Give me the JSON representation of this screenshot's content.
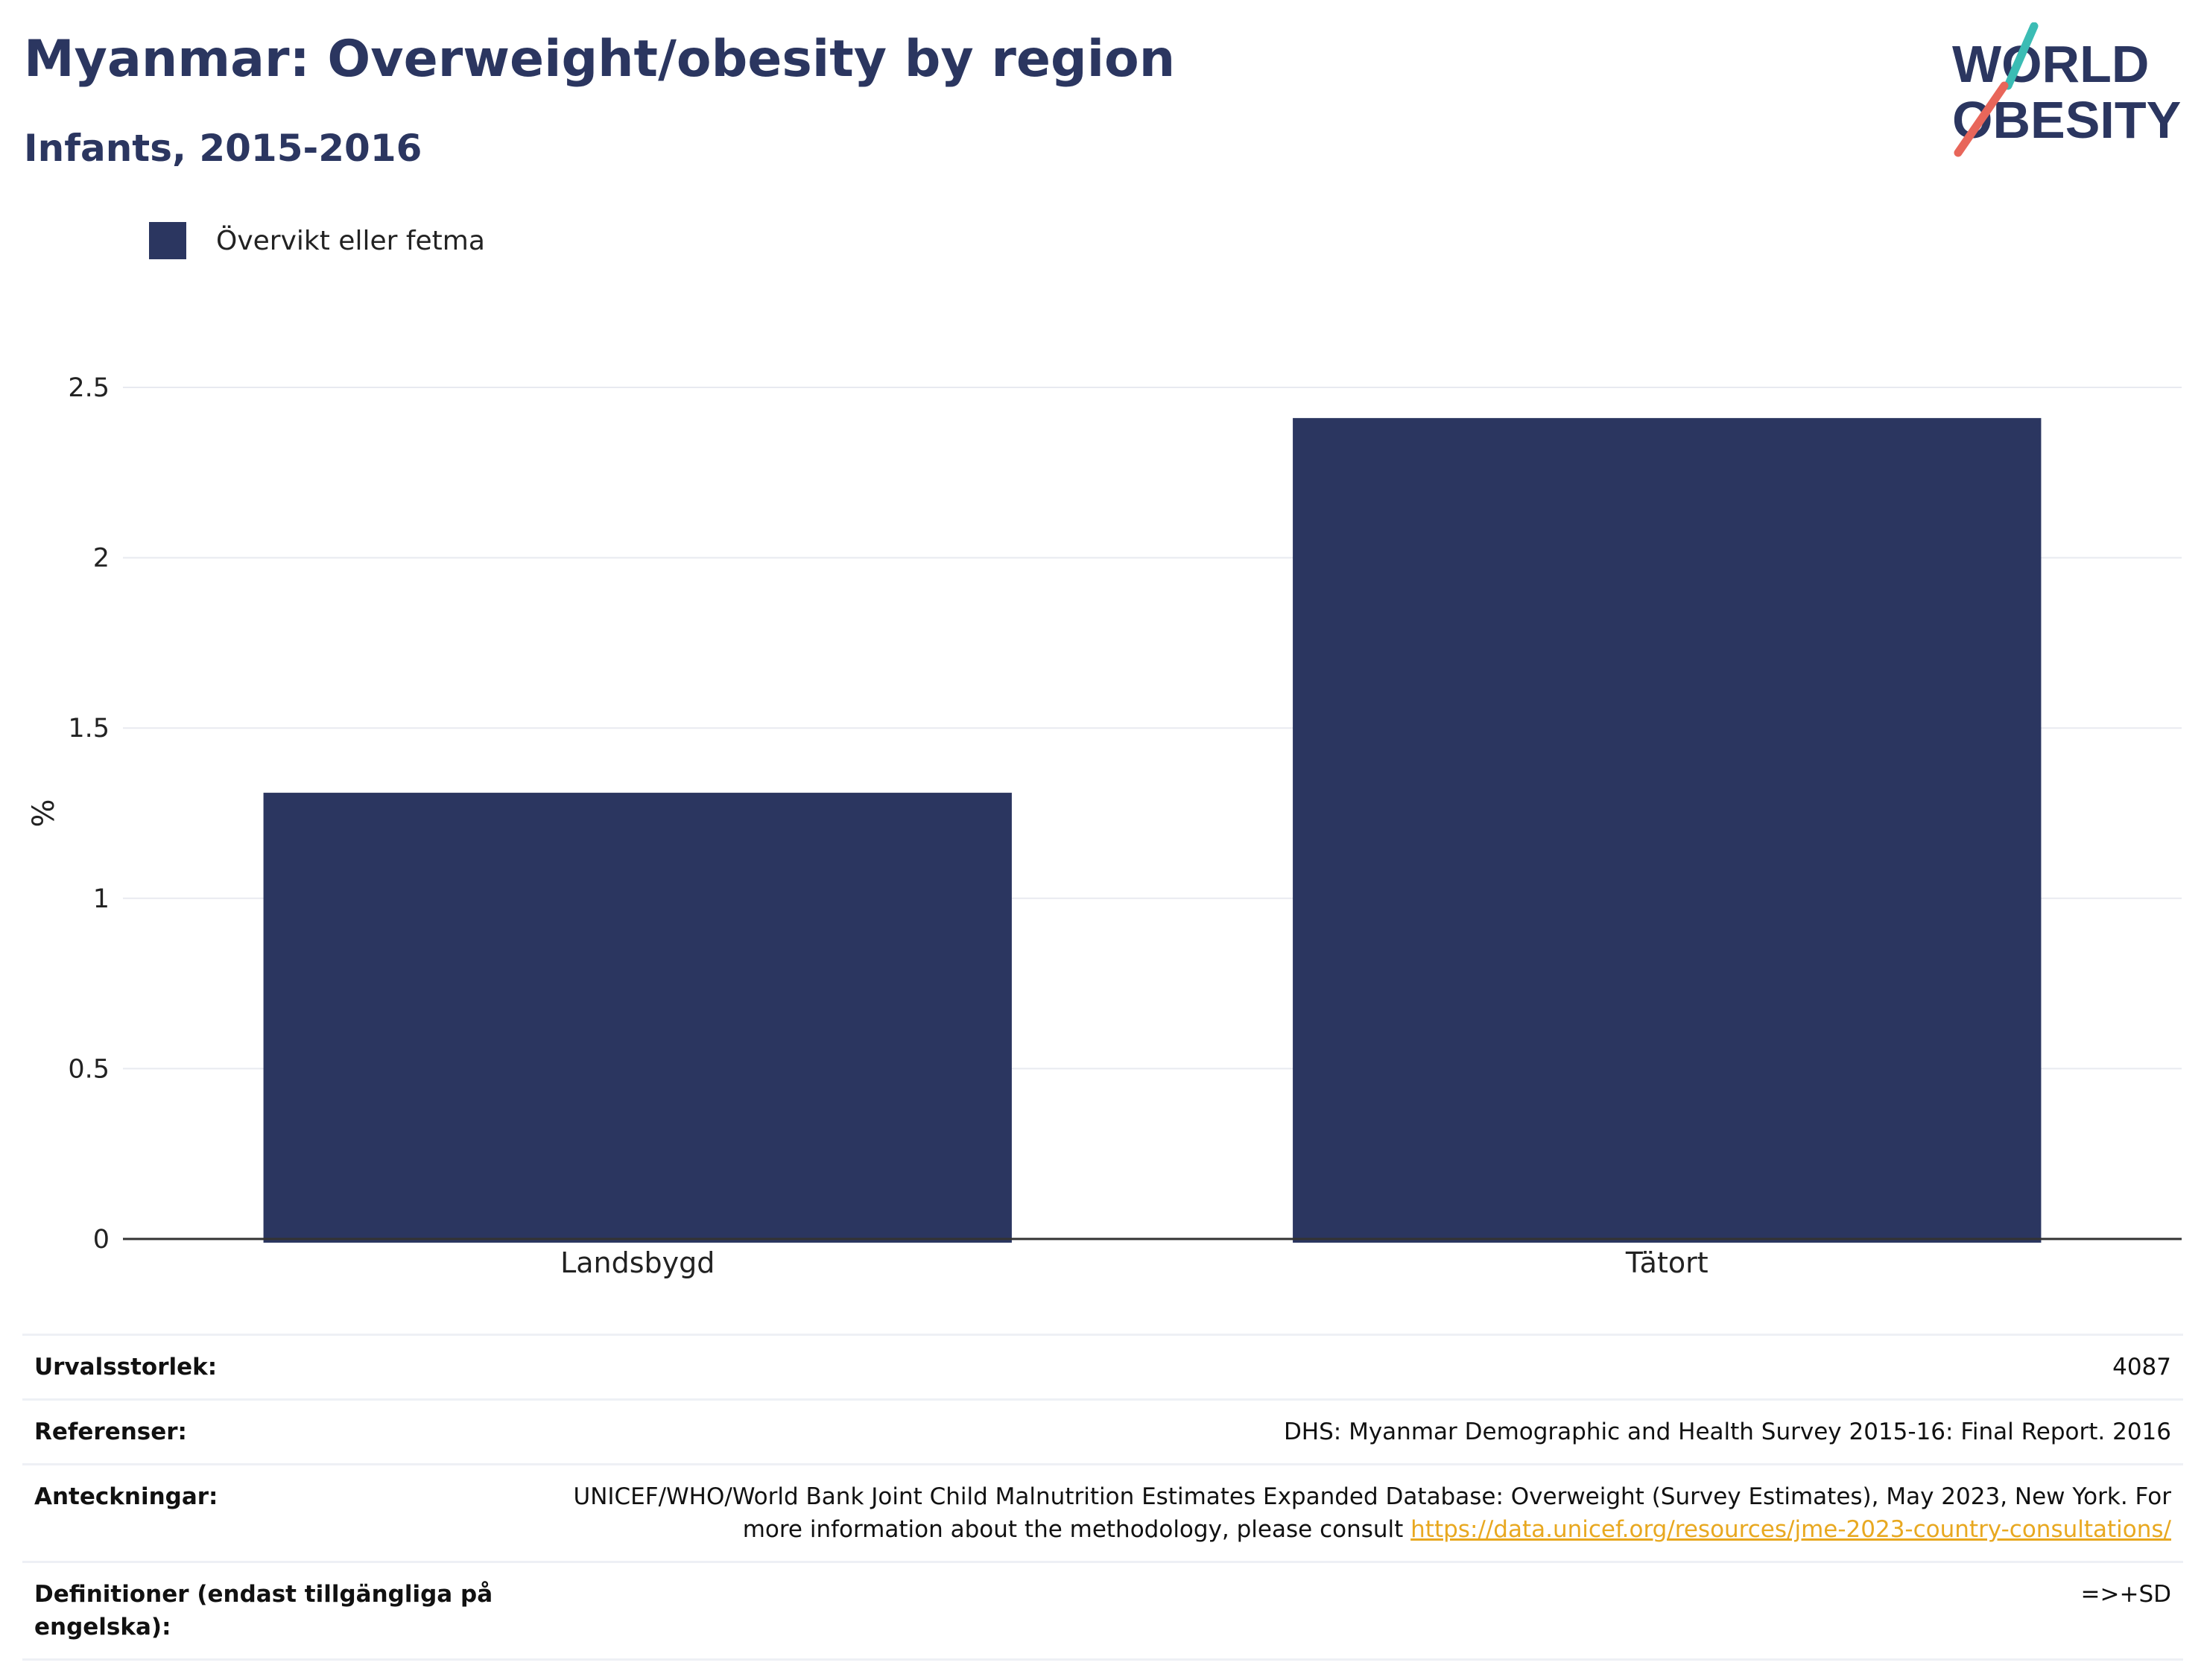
{
  "header": {
    "title": "Myanmar: Overweight/obesity by region",
    "subtitle": "Infants, 2015-2016"
  },
  "logo": {
    "line1": "WORLD",
    "line2": "OBESITY",
    "colors": {
      "navy": "#2b3660",
      "teal": "#3bbcb4",
      "coral": "#e8665a"
    }
  },
  "chart_data": {
    "type": "bar",
    "categories": [
      "Landsbygd",
      "Tätort"
    ],
    "series": [
      {
        "name": "Övervikt eller fetma",
        "values": [
          1.31,
          2.41
        ],
        "color": "#2b3660"
      }
    ],
    "ylabel": "%",
    "ylim": [
      0,
      2.5
    ],
    "yticks": [
      0,
      0.5,
      1,
      1.5,
      2,
      2.5
    ],
    "ytick_labels": [
      "0",
      "0.5",
      "1",
      "1.5",
      "2",
      "2.5"
    ],
    "grid": true,
    "legend_position": "top-left"
  },
  "info": [
    {
      "key": "Urvalsstorlek:",
      "value": "4087"
    },
    {
      "key": "Referenser:",
      "value": "DHS: Myanmar Demographic and Health Survey 2015-16: Final Report. 2016"
    },
    {
      "key": "Anteckningar:",
      "value": "UNICEF/WHO/World Bank Joint Child Malnutrition Estimates Expanded Database: Overweight (Survey Estimates), May 2023, New York. For more information about the methodology, please consult ",
      "link": "https://data.unicef.org/resources/jme-2023-country-consultations/"
    },
    {
      "key": "Definitioner (endast tillgängliga på engelska):",
      "value": "=>+SD"
    }
  ]
}
